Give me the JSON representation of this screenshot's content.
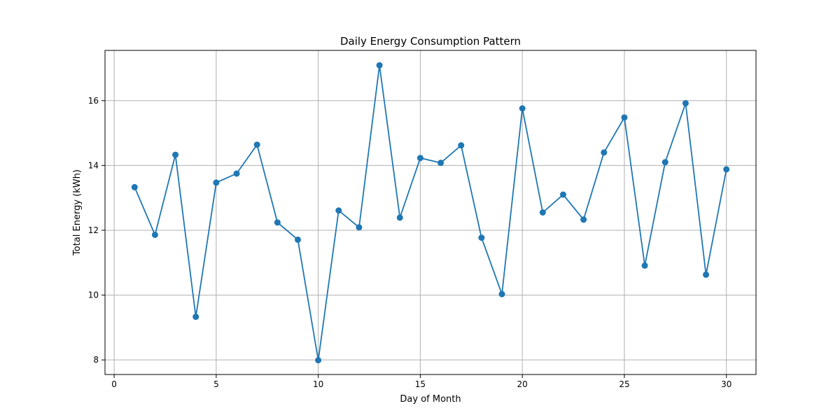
{
  "chart_data": {
    "type": "line",
    "title": "Daily Energy Consumption Pattern",
    "xlabel": "Day of Month",
    "ylabel": "Total Energy (kWh)",
    "xlim": [
      -0.45,
      31.45
    ],
    "ylim": [
      7.55,
      17.55
    ],
    "xticks": [
      0,
      5,
      10,
      15,
      20,
      25,
      30
    ],
    "yticks": [
      8,
      10,
      12,
      14,
      16
    ],
    "grid": true,
    "color": "#1f77b4",
    "x": [
      1,
      2,
      3,
      4,
      5,
      6,
      7,
      8,
      9,
      10,
      11,
      12,
      13,
      14,
      15,
      16,
      17,
      18,
      19,
      20,
      21,
      22,
      23,
      24,
      25,
      26,
      27,
      28,
      29,
      30
    ],
    "y": [
      13.33,
      11.86,
      14.33,
      9.33,
      13.47,
      13.75,
      14.64,
      12.24,
      11.71,
      7.99,
      12.61,
      12.09,
      17.09,
      12.39,
      14.23,
      14.08,
      14.62,
      11.77,
      10.03,
      15.76,
      12.55,
      13.1,
      12.33,
      14.4,
      15.48,
      10.91,
      14.1,
      15.92,
      10.63,
      13.88
    ]
  }
}
